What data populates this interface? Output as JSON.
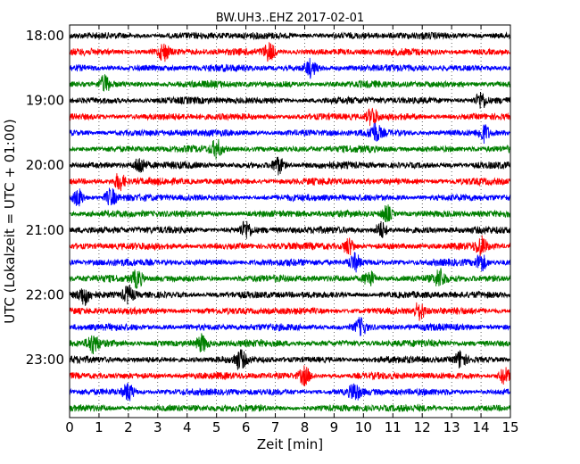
{
  "chart_data": {
    "type": "line",
    "title": "BW.UH3..EHZ 2017-02-01",
    "xlabel": "Zeit  [min]",
    "ylabel": "UTC (Lokalzeit = UTC + 01:00)",
    "xlim": [
      0,
      15
    ],
    "xticks": [
      "0",
      "1",
      "2",
      "3",
      "4",
      "5",
      "6",
      "7",
      "8",
      "9",
      "10",
      "11",
      "12",
      "13",
      "14",
      "15"
    ],
    "yticks": [
      "18:00",
      "19:00",
      "20:00",
      "21:00",
      "22:00",
      "23:00"
    ],
    "grid": "vertical dotted",
    "colors": [
      "#000000",
      "#ff0000",
      "#0000ff",
      "#008000"
    ],
    "traces": [
      {
        "start": "18:00",
        "color": "#000000",
        "events": []
      },
      {
        "start": "18:15",
        "color": "#ff0000",
        "events": [
          3.2,
          6.8
        ]
      },
      {
        "start": "18:30",
        "color": "#0000ff",
        "events": [
          8.2
        ]
      },
      {
        "start": "18:45",
        "color": "#008000",
        "events": [
          1.2
        ]
      },
      {
        "start": "19:00",
        "color": "#000000",
        "events": [
          14.0
        ]
      },
      {
        "start": "19:15",
        "color": "#ff0000",
        "events": [
          10.3
        ]
      },
      {
        "start": "19:30",
        "color": "#0000ff",
        "events": [
          10.4,
          14.1
        ]
      },
      {
        "start": "19:45",
        "color": "#008000",
        "events": [
          5.0
        ]
      },
      {
        "start": "20:00",
        "color": "#000000",
        "events": [
          2.4,
          7.1
        ]
      },
      {
        "start": "20:15",
        "color": "#ff0000",
        "events": [
          1.7
        ]
      },
      {
        "start": "20:30",
        "color": "#0000ff",
        "events": [
          0.3,
          1.4
        ]
      },
      {
        "start": "20:45",
        "color": "#008000",
        "events": [
          10.8
        ]
      },
      {
        "start": "21:00",
        "color": "#000000",
        "events": [
          6.0,
          10.6
        ]
      },
      {
        "start": "21:15",
        "color": "#ff0000",
        "events": [
          9.5,
          14.0
        ]
      },
      {
        "start": "21:30",
        "color": "#0000ff",
        "events": [
          9.7,
          14.0
        ]
      },
      {
        "start": "21:45",
        "color": "#008000",
        "events": [
          2.3,
          10.2,
          12.6
        ]
      },
      {
        "start": "22:00",
        "color": "#000000",
        "events": [
          0.5,
          2.0
        ]
      },
      {
        "start": "22:15",
        "color": "#ff0000",
        "events": [
          11.9
        ]
      },
      {
        "start": "22:30",
        "color": "#0000ff",
        "events": [
          9.9
        ]
      },
      {
        "start": "22:45",
        "color": "#008000",
        "events": [
          0.8,
          4.5
        ]
      },
      {
        "start": "23:00",
        "color": "#000000",
        "events": [
          5.8,
          13.3
        ]
      },
      {
        "start": "23:15",
        "color": "#ff0000",
        "events": [
          8.0,
          14.8
        ]
      },
      {
        "start": "23:30",
        "color": "#0000ff",
        "events": [
          2.0,
          9.7
        ]
      },
      {
        "start": "23:45",
        "color": "#008000",
        "events": []
      }
    ]
  }
}
